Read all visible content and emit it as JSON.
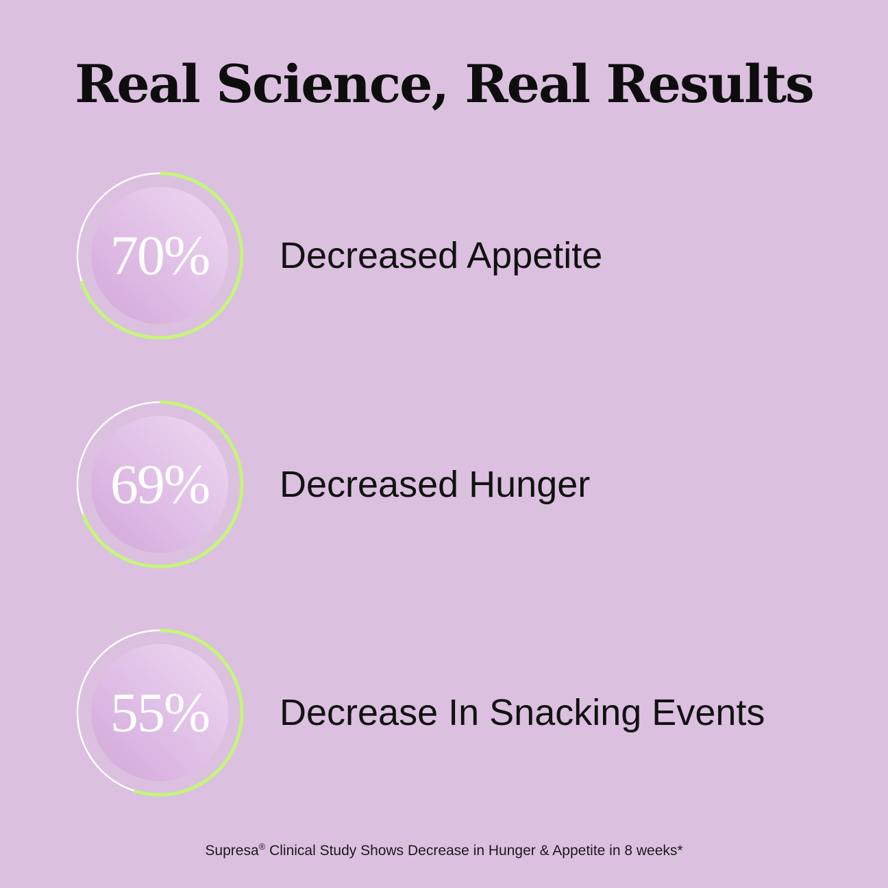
{
  "title": "Real Science, Real Results",
  "colors": {
    "background": "#dcc0e0",
    "ring_progress": "#c4f57a",
    "ring_track": "#ffffff"
  },
  "stats": [
    {
      "value": 70,
      "display": "70%",
      "label": "Decreased Appetite"
    },
    {
      "value": 69,
      "display": "69%",
      "label": "Decreased Hunger"
    },
    {
      "value": 55,
      "display": "55%",
      "label": "Decrease In Snacking Events"
    }
  ],
  "footnote": {
    "brand": "Supresa",
    "mark": "®",
    "text": " Clinical Study Shows Decrease in Hunger & Appetite in 8 weeks*"
  }
}
